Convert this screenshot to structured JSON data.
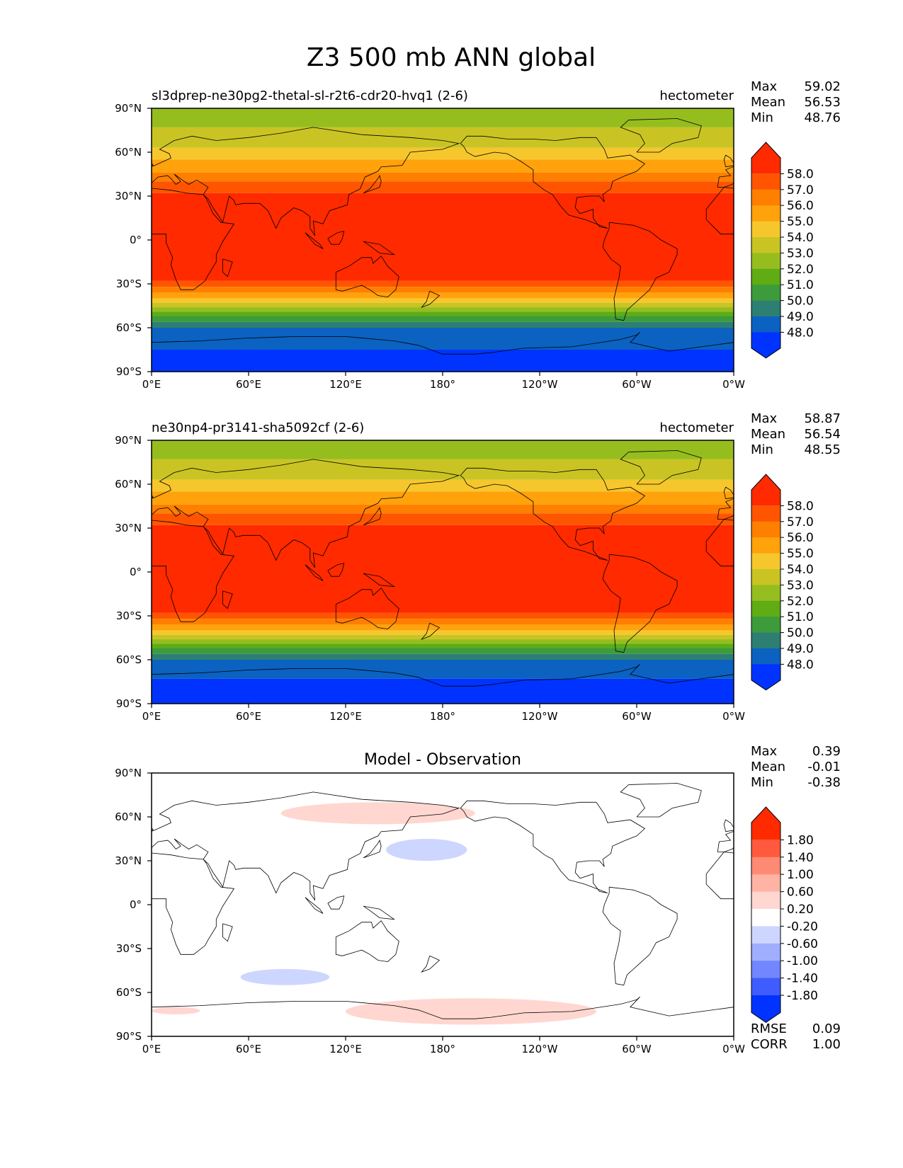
{
  "figure_title": "Z3 500 mb ANN global",
  "chart_data": [
    {
      "type": "heatmap",
      "id": "test",
      "title": "",
      "left_title": "sl3dprep-ne30pg2-thetal-sl-r2t6-cdr20-hvq1 (2-6)",
      "units": "hectometer",
      "stats": [
        {
          "label": "Max",
          "value": "59.02"
        },
        {
          "label": "Mean",
          "value": "56.53"
        },
        {
          "label": "Min",
          "value": "48.76"
        }
      ],
      "xticks": [
        "0°E",
        "60°E",
        "120°E",
        "180°",
        "120°W",
        "60°W",
        "0°W"
      ],
      "yticks": [
        "90°N",
        "60°N",
        "30°N",
        "0°",
        "30°S",
        "60°S",
        "90°S"
      ],
      "xlim": [
        0,
        360
      ],
      "ylim": [
        -90,
        90
      ],
      "colorbar_levels": [
        "58.0",
        "57.0",
        "56.0",
        "55.0",
        "54.0",
        "53.0",
        "52.0",
        "51.0",
        "50.0",
        "49.0",
        "48.0"
      ],
      "colorbar_colors": [
        "#ff2a00",
        "#ff5500",
        "#ff7f00",
        "#ffa20b",
        "#f6c72c",
        "#c9c423",
        "#96bd1e",
        "#5fac14",
        "#3d9b3b",
        "#2d7f73",
        "#0b62c1",
        "#0033ff"
      ],
      "field_bands_lat_level": [
        [
          90,
          5
        ],
        [
          77,
          6
        ],
        [
          63,
          7
        ],
        [
          55,
          8
        ],
        [
          46,
          9
        ],
        [
          40,
          10
        ],
        [
          32,
          11
        ],
        [
          -28,
          10
        ],
        [
          -32,
          9
        ],
        [
          -36,
          8
        ],
        [
          -40,
          7
        ],
        [
          -43,
          6
        ],
        [
          -46,
          5
        ],
        [
          -49,
          4
        ],
        [
          -52,
          3
        ],
        [
          -56,
          2
        ],
        [
          -60,
          1
        ],
        [
          -75,
          0
        ]
      ]
    },
    {
      "type": "heatmap",
      "id": "reference",
      "title": "",
      "left_title": "ne30np4-pr3141-sha5092cf (2-6)",
      "units": "hectometer",
      "stats": [
        {
          "label": "Max",
          "value": "58.87"
        },
        {
          "label": "Mean",
          "value": "56.54"
        },
        {
          "label": "Min",
          "value": "48.55"
        }
      ],
      "xticks": [
        "0°E",
        "60°E",
        "120°E",
        "180°",
        "120°W",
        "60°W",
        "0°W"
      ],
      "yticks": [
        "90°N",
        "60°N",
        "30°N",
        "0°",
        "30°S",
        "60°S",
        "90°S"
      ],
      "xlim": [
        0,
        360
      ],
      "ylim": [
        -90,
        90
      ],
      "colorbar_levels": [
        "58.0",
        "57.0",
        "56.0",
        "55.0",
        "54.0",
        "53.0",
        "52.0",
        "51.0",
        "50.0",
        "49.0",
        "48.0"
      ],
      "colorbar_colors": [
        "#ff2a00",
        "#ff5500",
        "#ff7f00",
        "#ffa20b",
        "#f6c72c",
        "#c9c423",
        "#96bd1e",
        "#5fac14",
        "#3d9b3b",
        "#2d7f73",
        "#0b62c1",
        "#0033ff"
      ],
      "field_bands_lat_level": [
        [
          90,
          5
        ],
        [
          77,
          6
        ],
        [
          63,
          7
        ],
        [
          55,
          8
        ],
        [
          46,
          9
        ],
        [
          40,
          10
        ],
        [
          32,
          11
        ],
        [
          -28,
          10
        ],
        [
          -32,
          9
        ],
        [
          -36,
          8
        ],
        [
          -40,
          7
        ],
        [
          -43,
          6
        ],
        [
          -46,
          5
        ],
        [
          -49,
          4
        ],
        [
          -52,
          3
        ],
        [
          -56,
          2
        ],
        [
          -60,
          1
        ],
        [
          -73,
          0
        ]
      ]
    },
    {
      "type": "heatmap",
      "id": "difference",
      "title": "Model - Observation",
      "left_title": "",
      "units": "",
      "stats": [
        {
          "label": "Max",
          "value": "0.39"
        },
        {
          "label": "Mean",
          "value": "-0.01"
        },
        {
          "label": "Min",
          "value": "-0.38"
        }
      ],
      "metrics": [
        {
          "label": "RMSE",
          "value": "0.09"
        },
        {
          "label": "CORR",
          "value": "1.00"
        }
      ],
      "xticks": [
        "0°E",
        "60°E",
        "120°E",
        "180°",
        "120°W",
        "60°W",
        "0°W"
      ],
      "yticks": [
        "90°N",
        "60°N",
        "30°N",
        "0°",
        "30°S",
        "60°S",
        "90°S"
      ],
      "xlim": [
        0,
        360
      ],
      "ylim": [
        -90,
        90
      ],
      "colorbar_levels": [
        "1.80",
        "1.40",
        "1.00",
        "0.60",
        "0.20",
        "-0.20",
        "-0.60",
        "-1.00",
        "-1.40",
        "-1.80"
      ],
      "colorbar_colors": [
        "#ff2a00",
        "#ff5a3d",
        "#ff8a73",
        "#ffb3a5",
        "#ffd7d0",
        "#ffffff",
        "#cdd6ff",
        "#a0aeff",
        "#7286ff",
        "#3f5cff",
        "#0033ff"
      ],
      "anomaly_patches": [
        {
          "sign": "positive",
          "lon_range": [
            80,
            200
          ],
          "lat_range": [
            55,
            70
          ]
        },
        {
          "sign": "negative",
          "lon_range": [
            145,
            195
          ],
          "lat_range": [
            30,
            45
          ]
        },
        {
          "sign": "negative",
          "lon_range": [
            55,
            110
          ],
          "lat_range": [
            -55,
            -44
          ]
        },
        {
          "sign": "positive",
          "lon_range": [
            120,
            275
          ],
          "lat_range": [
            -82,
            -64
          ]
        },
        {
          "sign": "positive",
          "lon_range": [
            0,
            30
          ],
          "lat_range": [
            -75,
            -70
          ]
        }
      ]
    }
  ]
}
